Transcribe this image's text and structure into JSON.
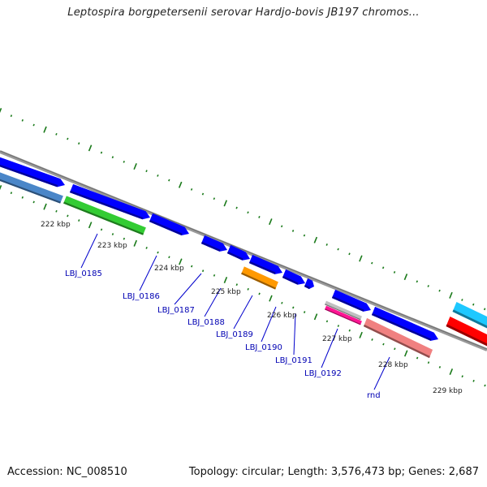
{
  "title": "Leptospira borgpetersenii serovar Hardjo-bovis JB197 chromos...",
  "footer": {
    "accession": "Accession: NC_008510",
    "summary": "Topology: circular; Length: 3,576,473 bp; Genes: 2,687"
  },
  "scale_labels": [
    "222 kbp",
    "223 kbp",
    "224 kbp",
    "225 kbp",
    "226 kbp",
    "227 kbp",
    "228 kbp",
    "229 kbp"
  ],
  "gene_labels": [
    "LBJ_0185",
    "LBJ_0186",
    "LBJ_0187",
    "LBJ_0188",
    "LBJ_0189",
    "LBJ_0190",
    "LBJ_0191",
    "LBJ_0192",
    "rnd"
  ],
  "colors": {
    "background": "#ffffff",
    "backbone": "#808080",
    "tick": "#1a7a1a",
    "cds_forward": "#0000ff",
    "cds_reverse_blue": "#4a86c8",
    "green": "#33cc33",
    "orange": "#ff9900",
    "magenta": "#ff1493",
    "silver": "#c0c0c0",
    "pink": "#f08080",
    "cyan": "#1ec8ff",
    "red": "#ff0000",
    "label": "#0000b3"
  }
}
